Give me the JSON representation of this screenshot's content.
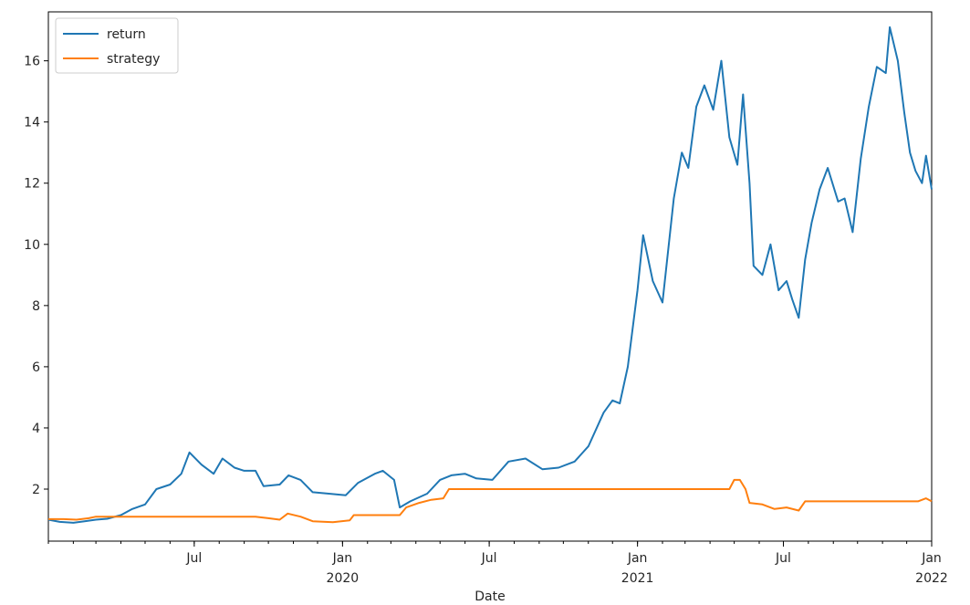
{
  "chart_data": {
    "type": "line",
    "title": "",
    "xlabel": "Date",
    "ylabel": "",
    "x_range": [
      "2019-01-01",
      "2022-01-01"
    ],
    "ylim": [
      0.3,
      17.6
    ],
    "yticks": [
      2,
      4,
      6,
      8,
      10,
      12,
      14,
      16
    ],
    "xticks": [
      {
        "date": "2019-07-01",
        "label": "Jul",
        "sublabel": ""
      },
      {
        "date": "2020-01-01",
        "label": "Jan",
        "sublabel": "2020"
      },
      {
        "date": "2020-07-01",
        "label": "Jul",
        "sublabel": ""
      },
      {
        "date": "2021-01-01",
        "label": "Jan",
        "sublabel": "2021"
      },
      {
        "date": "2021-07-01",
        "label": "Jul",
        "sublabel": ""
      },
      {
        "date": "2022-01-01",
        "label": "Jan",
        "sublabel": "2022"
      }
    ],
    "grid": false,
    "legend_position": "top-left",
    "series": [
      {
        "name": "return",
        "color": "#1f77b4",
        "points": [
          [
            "2019-01-01",
            1.0
          ],
          [
            "2019-01-15",
            0.93
          ],
          [
            "2019-02-01",
            0.9
          ],
          [
            "2019-02-15",
            0.95
          ],
          [
            "2019-03-01",
            1.0
          ],
          [
            "2019-03-15",
            1.03
          ],
          [
            "2019-04-01",
            1.15
          ],
          [
            "2019-04-15",
            1.35
          ],
          [
            "2019-05-01",
            1.5
          ],
          [
            "2019-05-15",
            2.0
          ],
          [
            "2019-06-01",
            2.15
          ],
          [
            "2019-06-15",
            2.5
          ],
          [
            "2019-06-25",
            3.2
          ],
          [
            "2019-07-10",
            2.8
          ],
          [
            "2019-07-25",
            2.5
          ],
          [
            "2019-08-05",
            3.0
          ],
          [
            "2019-08-20",
            2.7
          ],
          [
            "2019-09-01",
            2.6
          ],
          [
            "2019-09-15",
            2.6
          ],
          [
            "2019-09-25",
            2.1
          ],
          [
            "2019-10-15",
            2.15
          ],
          [
            "2019-10-26",
            2.45
          ],
          [
            "2019-11-10",
            2.3
          ],
          [
            "2019-11-25",
            1.9
          ],
          [
            "2019-12-15",
            1.85
          ],
          [
            "2020-01-05",
            1.8
          ],
          [
            "2020-01-20",
            2.2
          ],
          [
            "2020-02-10",
            2.5
          ],
          [
            "2020-02-20",
            2.6
          ],
          [
            "2020-03-05",
            2.3
          ],
          [
            "2020-03-12",
            1.4
          ],
          [
            "2020-03-25",
            1.6
          ],
          [
            "2020-04-15",
            1.85
          ],
          [
            "2020-05-01",
            2.3
          ],
          [
            "2020-05-15",
            2.45
          ],
          [
            "2020-06-01",
            2.5
          ],
          [
            "2020-06-15",
            2.35
          ],
          [
            "2020-07-05",
            2.3
          ],
          [
            "2020-07-25",
            2.9
          ],
          [
            "2020-08-15",
            3.0
          ],
          [
            "2020-09-05",
            2.65
          ],
          [
            "2020-09-25",
            2.7
          ],
          [
            "2020-10-15",
            2.9
          ],
          [
            "2020-11-01",
            3.4
          ],
          [
            "2020-11-20",
            4.5
          ],
          [
            "2020-12-01",
            4.9
          ],
          [
            "2020-12-10",
            4.8
          ],
          [
            "2020-12-20",
            6.0
          ],
          [
            "2021-01-01",
            8.5
          ],
          [
            "2021-01-08",
            10.3
          ],
          [
            "2021-01-20",
            8.8
          ],
          [
            "2021-02-01",
            8.1
          ],
          [
            "2021-02-15",
            11.5
          ],
          [
            "2021-02-25",
            13.0
          ],
          [
            "2021-03-05",
            12.5
          ],
          [
            "2021-03-15",
            14.5
          ],
          [
            "2021-03-25",
            15.2
          ],
          [
            "2021-04-05",
            14.4
          ],
          [
            "2021-04-15",
            16.0
          ],
          [
            "2021-04-25",
            13.5
          ],
          [
            "2021-05-05",
            12.6
          ],
          [
            "2021-05-12",
            14.9
          ],
          [
            "2021-05-20",
            12.0
          ],
          [
            "2021-05-25",
            9.3
          ],
          [
            "2021-06-05",
            9.0
          ],
          [
            "2021-06-15",
            10.0
          ],
          [
            "2021-06-25",
            8.5
          ],
          [
            "2021-07-05",
            8.8
          ],
          [
            "2021-07-12",
            8.2
          ],
          [
            "2021-07-20",
            7.6
          ],
          [
            "2021-07-28",
            9.5
          ],
          [
            "2021-08-05",
            10.7
          ],
          [
            "2021-08-15",
            11.8
          ],
          [
            "2021-08-25",
            12.5
          ],
          [
            "2021-09-07",
            11.4
          ],
          [
            "2021-09-15",
            11.5
          ],
          [
            "2021-09-25",
            10.4
          ],
          [
            "2021-10-05",
            12.8
          ],
          [
            "2021-10-15",
            14.5
          ],
          [
            "2021-10-25",
            15.8
          ],
          [
            "2021-11-05",
            15.6
          ],
          [
            "2021-11-10",
            17.1
          ],
          [
            "2021-11-20",
            16.0
          ],
          [
            "2021-11-28",
            14.3
          ],
          [
            "2021-12-05",
            13.0
          ],
          [
            "2021-12-12",
            12.4
          ],
          [
            "2021-12-20",
            12.0
          ],
          [
            "2021-12-25",
            12.9
          ],
          [
            "2022-01-01",
            11.8
          ]
        ]
      },
      {
        "name": "strategy",
        "color": "#ff7f0e",
        "points": [
          [
            "2019-01-01",
            1.02
          ],
          [
            "2019-01-20",
            1.02
          ],
          [
            "2019-02-05",
            1.0
          ],
          [
            "2019-02-20",
            1.05
          ],
          [
            "2019-03-01",
            1.1
          ],
          [
            "2019-04-01",
            1.1
          ],
          [
            "2019-06-01",
            1.1
          ],
          [
            "2019-09-15",
            1.1
          ],
          [
            "2019-10-01",
            1.05
          ],
          [
            "2019-10-15",
            1.0
          ],
          [
            "2019-10-25",
            1.2
          ],
          [
            "2019-11-10",
            1.1
          ],
          [
            "2019-11-25",
            0.95
          ],
          [
            "2019-12-20",
            0.92
          ],
          [
            "2020-01-10",
            0.98
          ],
          [
            "2020-01-15",
            1.15
          ],
          [
            "2020-02-01",
            1.15
          ],
          [
            "2020-03-12",
            1.15
          ],
          [
            "2020-03-20",
            1.4
          ],
          [
            "2020-04-05",
            1.55
          ],
          [
            "2020-04-20",
            1.65
          ],
          [
            "2020-05-05",
            1.7
          ],
          [
            "2020-05-12",
            2.0
          ],
          [
            "2020-07-01",
            2.0
          ],
          [
            "2021-04-25",
            2.0
          ],
          [
            "2021-05-01",
            2.3
          ],
          [
            "2021-05-08",
            2.3
          ],
          [
            "2021-05-15",
            2.0
          ],
          [
            "2021-05-20",
            1.55
          ],
          [
            "2021-06-05",
            1.5
          ],
          [
            "2021-06-20",
            1.35
          ],
          [
            "2021-07-05",
            1.4
          ],
          [
            "2021-07-20",
            1.3
          ],
          [
            "2021-07-28",
            1.6
          ],
          [
            "2021-08-15",
            1.6
          ],
          [
            "2021-12-15",
            1.6
          ],
          [
            "2021-12-25",
            1.7
          ],
          [
            "2022-01-01",
            1.6
          ]
        ]
      }
    ]
  }
}
